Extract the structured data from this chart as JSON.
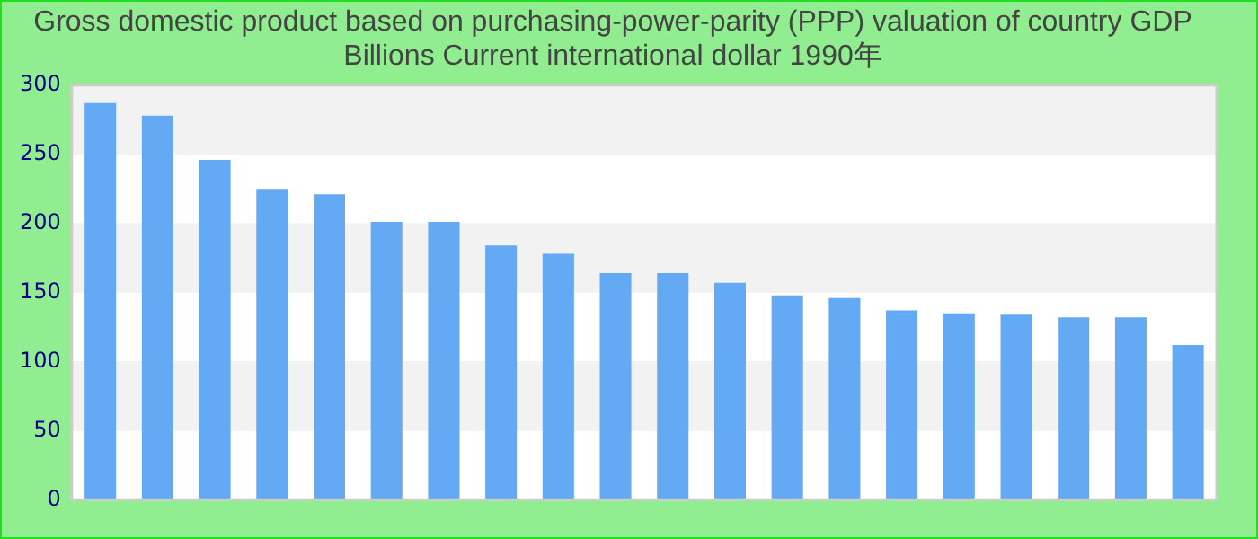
{
  "chart_data": {
    "type": "bar",
    "title": "Gross domestic product based on purchasing-power-parity (PPP) valuation of country GDP Billions Current international dollar 1990年",
    "categories": [
      null,
      null,
      null,
      null,
      null,
      null,
      null,
      null,
      null,
      null,
      null,
      null,
      null,
      null,
      null,
      null,
      null,
      null,
      null,
      null
    ],
    "values": [
      287,
      278,
      246,
      225,
      221,
      201,
      201,
      184,
      178,
      164,
      164,
      157,
      148,
      146,
      137,
      135,
      134,
      132,
      132,
      112
    ],
    "color": "#63a9f4",
    "ylim": [
      0,
      300
    ],
    "yticks": [
      0,
      50,
      100,
      150,
      200,
      250,
      300
    ],
    "grid": "y",
    "legend": false
  }
}
